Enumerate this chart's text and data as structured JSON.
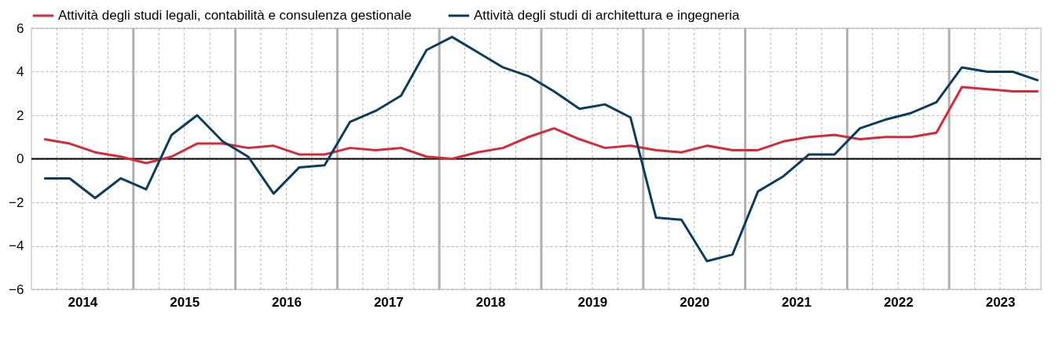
{
  "chart_data": {
    "type": "line",
    "legend": "top",
    "grid": true,
    "line_style": "solid",
    "marker": "none",
    "x": [
      2014.125,
      2014.375,
      2014.625,
      2014.875,
      2015.125,
      2015.375,
      2015.625,
      2015.875,
      2016.125,
      2016.375,
      2016.625,
      2016.875,
      2017.125,
      2017.375,
      2017.625,
      2017.875,
      2018.125,
      2018.375,
      2018.625,
      2018.875,
      2019.125,
      2019.375,
      2019.625,
      2019.875,
      2020.125,
      2020.375,
      2020.625,
      2020.875,
      2021.125,
      2021.375,
      2021.625,
      2021.875,
      2022.125,
      2022.375,
      2022.625,
      2022.875,
      2023.125,
      2023.375,
      2023.625,
      2023.875
    ],
    "xlim": [
      2014,
      2023.9
    ],
    "xticks": [
      {
        "value": 2014.5,
        "label": "2014"
      },
      {
        "value": 2015.5,
        "label": "2015"
      },
      {
        "value": 2016.5,
        "label": "2016"
      },
      {
        "value": 2017.5,
        "label": "2017"
      },
      {
        "value": 2018.5,
        "label": "2018"
      },
      {
        "value": 2019.5,
        "label": "2019"
      },
      {
        "value": 2020.5,
        "label": "2020"
      },
      {
        "value": 2021.5,
        "label": "2021"
      },
      {
        "value": 2022.5,
        "label": "2022"
      },
      {
        "value": 2023.5,
        "label": "2023"
      }
    ],
    "ylim": [
      -6,
      6
    ],
    "yticks": [
      -6,
      -4,
      -2,
      0,
      2,
      4,
      6
    ],
    "ref_lines": [
      {
        "axis": "y",
        "value": 0,
        "color": "#000000"
      }
    ],
    "series": [
      {
        "name": "Attività degli studi legali, contabilità e consulenza gestionale",
        "color": "#d62a3a",
        "values": [
          0.9,
          0.7,
          0.3,
          0.1,
          -0.2,
          0.1,
          0.7,
          0.7,
          0.5,
          0.6,
          0.2,
          0.2,
          0.5,
          0.4,
          0.5,
          0.1,
          0.0,
          0.3,
          0.5,
          1.0,
          1.4,
          0.9,
          0.5,
          0.6,
          0.4,
          0.3,
          0.6,
          0.4,
          0.4,
          0.8,
          1.0,
          1.1,
          0.9,
          1.0,
          1.0,
          1.2,
          3.3,
          3.2,
          3.1,
          3.1
        ]
      },
      {
        "name": "Attività degli studi di architettura e ingegneria",
        "color": "#0d3d5c",
        "values": [
          -0.9,
          -0.9,
          -1.8,
          -0.9,
          -1.4,
          1.1,
          2.0,
          0.8,
          0.1,
          -1.6,
          -0.4,
          -0.3,
          1.7,
          2.2,
          2.9,
          5.0,
          5.6,
          4.9,
          4.2,
          3.8,
          3.1,
          2.3,
          2.5,
          1.9,
          -2.7,
          -2.8,
          -4.7,
          -4.4,
          -1.5,
          -0.8,
          0.2,
          0.2,
          1.4,
          1.8,
          2.1,
          2.6,
          4.2,
          4.0,
          4.0,
          3.6
        ]
      }
    ]
  }
}
